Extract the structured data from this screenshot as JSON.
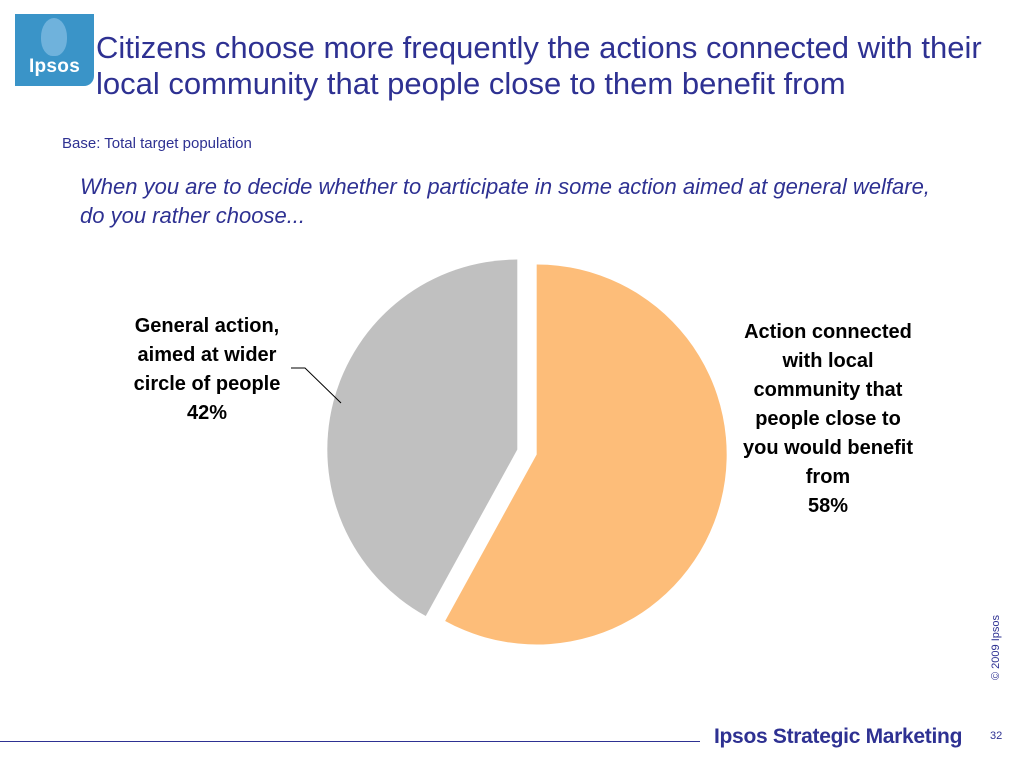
{
  "header": {
    "logo_text": "Ipsos",
    "title": "Citizens choose more frequently the actions connected with their local community that people close to them benefit from",
    "base": "Base: Total target population",
    "question": "When you are to decide whether to participate in some action aimed at general welfare, do you rather choose..."
  },
  "chart_data": {
    "type": "pie",
    "slices": [
      {
        "label": "Action connected with local community that people close to you would benefit from",
        "value": 58,
        "value_label": "58%",
        "color": "#fdbd79"
      },
      {
        "label": "General action, aimed at wider circle of people",
        "value": 42,
        "value_label": "42%",
        "color": "#c0c0c0"
      }
    ]
  },
  "footer": {
    "copyright": "© 2009 Ipsos",
    "brand_bold": "Ipsos",
    "brand_rest": "Strategic Marketing",
    "page_number": "32"
  }
}
